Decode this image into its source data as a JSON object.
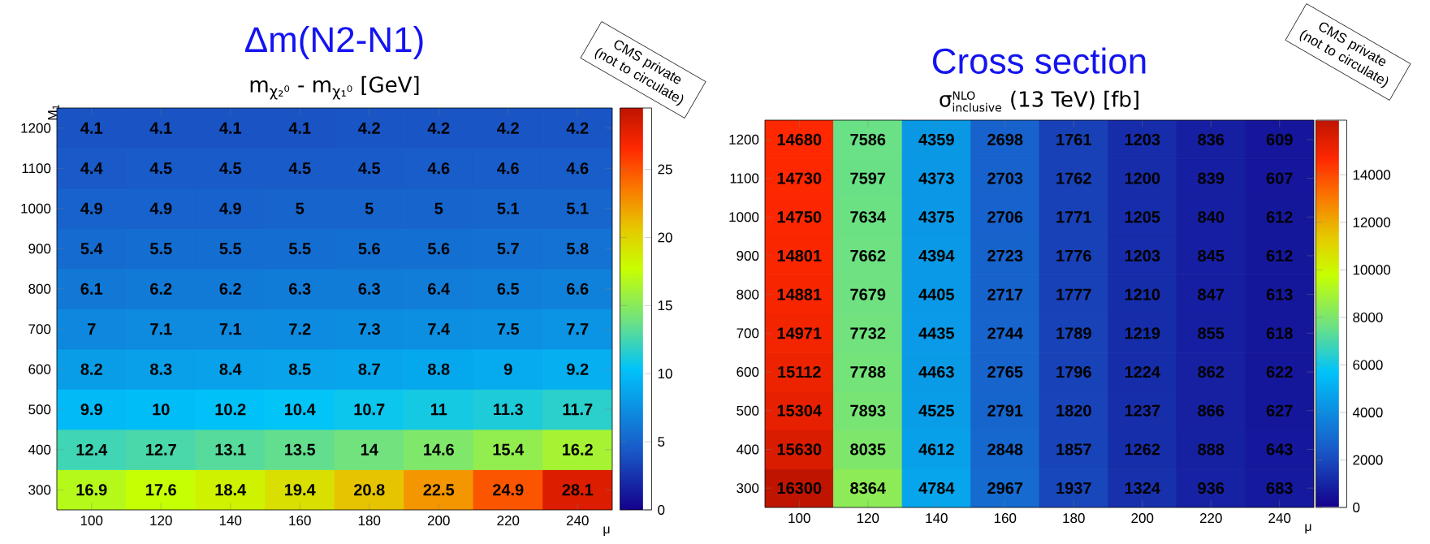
{
  "chart_data": [
    {
      "type": "heatmap",
      "title": "Δm(N2-N1)",
      "subtitle": "m$_{χ₂⁰}$ - m$_{χ₁⁰}$ [GeV]",
      "xlabel": "μ",
      "ylabel": "M$_{1}$",
      "categories": [
        "100",
        "120",
        "140",
        "160",
        "180",
        "200",
        "220",
        "240"
      ],
      "y_categories": [
        "1200",
        "1100",
        "1000",
        "900",
        "800",
        "700",
        "600",
        "500",
        "400",
        "300"
      ],
      "cells": [
        [
          4.1,
          4.1,
          4.1,
          4.1,
          4.2,
          4.2,
          4.2,
          4.2
        ],
        [
          4.4,
          4.5,
          4.5,
          4.5,
          4.5,
          4.6,
          4.6,
          4.6
        ],
        [
          4.9,
          4.9,
          4.9,
          5,
          5,
          5,
          5.1,
          5.1
        ],
        [
          5.4,
          5.5,
          5.5,
          5.5,
          5.6,
          5.6,
          5.7,
          5.8
        ],
        [
          6.1,
          6.2,
          6.2,
          6.3,
          6.3,
          6.4,
          6.5,
          6.6
        ],
        [
          7,
          7.1,
          7.1,
          7.2,
          7.3,
          7.4,
          7.5,
          7.7
        ],
        [
          8.2,
          8.3,
          8.4,
          8.5,
          8.7,
          8.8,
          9,
          9.2
        ],
        [
          9.9,
          10,
          10.2,
          10.4,
          10.7,
          11,
          11.3,
          11.7
        ],
        [
          12.4,
          12.7,
          13.1,
          13.5,
          14,
          14.6,
          15.4,
          16.2
        ],
        [
          16.9,
          17.6,
          18.4,
          19.4,
          20.8,
          22.5,
          24.9,
          28.1
        ]
      ],
      "clim": [
        0,
        29.5
      ],
      "cticks": [
        0,
        5,
        10,
        15,
        20,
        25
      ],
      "data_labels": true,
      "annotations": [
        "CMS private (not to circulate)"
      ]
    },
    {
      "type": "heatmap",
      "title": "Cross section",
      "subtitle": "\\mbox{σ}^{\\mbox{\\scriptsize NLO}}_{\\mbox{\\scriptsize inclusive}}\\mbox{ (13 TeV) [fb]}",
      "xlabel": "μ",
      "categories": [
        "100",
        "120",
        "140",
        "160",
        "180",
        "200",
        "220",
        "240"
      ],
      "y_categories": [
        "1200",
        "1100",
        "1000",
        "900",
        "800",
        "700",
        "600",
        "500",
        "400",
        "300"
      ],
      "cells": [
        [
          14680,
          7586,
          4359,
          2698,
          1761,
          1203,
          836,
          609
        ],
        [
          14730,
          7597,
          4373,
          2703,
          1762,
          1200,
          839,
          607
        ],
        [
          14750,
          7634,
          4375,
          2706,
          1771,
          1205,
          840,
          612
        ],
        [
          14801,
          7662,
          4394,
          2723,
          1776,
          1203,
          845,
          612
        ],
        [
          14881,
          7679,
          4405,
          2717,
          1777,
          1210,
          847,
          613
        ],
        [
          14971,
          7732,
          4435,
          2744,
          1789,
          1219,
          855,
          618
        ],
        [
          15112,
          7788,
          4463,
          2765,
          1796,
          1224,
          862,
          622
        ],
        [
          15304,
          7893,
          4525,
          2791,
          1820,
          1237,
          866,
          627
        ],
        [
          15630,
          8035,
          4612,
          2848,
          1857,
          1262,
          888,
          643
        ],
        [
          16300,
          8364,
          4784,
          2967,
          1937,
          1324,
          936,
          683
        ]
      ],
      "clim": [
        0,
        16300
      ],
      "cticks": [
        0,
        2000,
        4000,
        6000,
        8000,
        10000,
        12000,
        14000
      ],
      "data_labels": true,
      "annotations": [
        "CMS private (not to circulate)"
      ]
    }
  ]
}
